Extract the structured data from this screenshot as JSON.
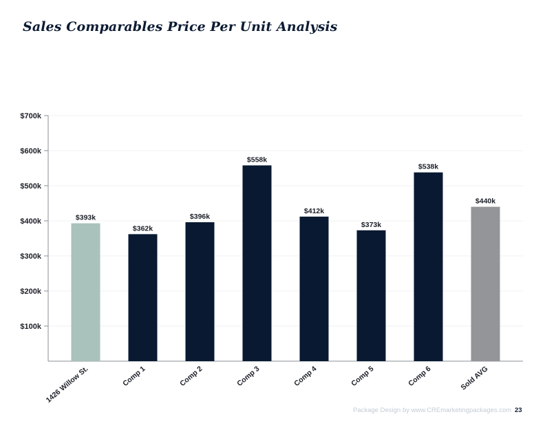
{
  "page": {
    "title": "Sales Comparables Price Per Unit Analysis",
    "footer_credit": "Package Design by www.CREmarketingpackages.com",
    "page_number": "23"
  },
  "colors": {
    "title": "#0b1b33",
    "subject_bar": "#a9c2bb",
    "comp_bar": "#081931",
    "average_bar": "#949598",
    "axis": "#8a8f96",
    "grid": "#f0f1f3",
    "label": "#1b1f27",
    "footer": "#c3ccd6"
  },
  "chart_data": {
    "type": "bar",
    "categories": [
      "1426 Willow St.",
      "Comp 1",
      "Comp 2",
      "Comp 3",
      "Comp 4",
      "Comp 5",
      "Comp 6",
      "Sold AVG"
    ],
    "values": [
      393,
      362,
      396,
      558,
      412,
      373,
      538,
      440
    ],
    "value_labels": [
      "$393k",
      "$362k",
      "$396k",
      "$558k",
      "$412k",
      "$373k",
      "$538k",
      "$440k"
    ],
    "bar_roles": [
      "subject",
      "comp",
      "comp",
      "comp",
      "comp",
      "comp",
      "comp",
      "average"
    ],
    "yticks": [
      100,
      200,
      300,
      400,
      500,
      600,
      700
    ],
    "ytick_labels": [
      "$100k",
      "$200k",
      "$300k",
      "$400k",
      "$500k",
      "$600k",
      "$700k"
    ],
    "ylim": [
      0,
      700
    ],
    "x_label_rotation": "diagonal",
    "grid": true,
    "legend": "none"
  }
}
